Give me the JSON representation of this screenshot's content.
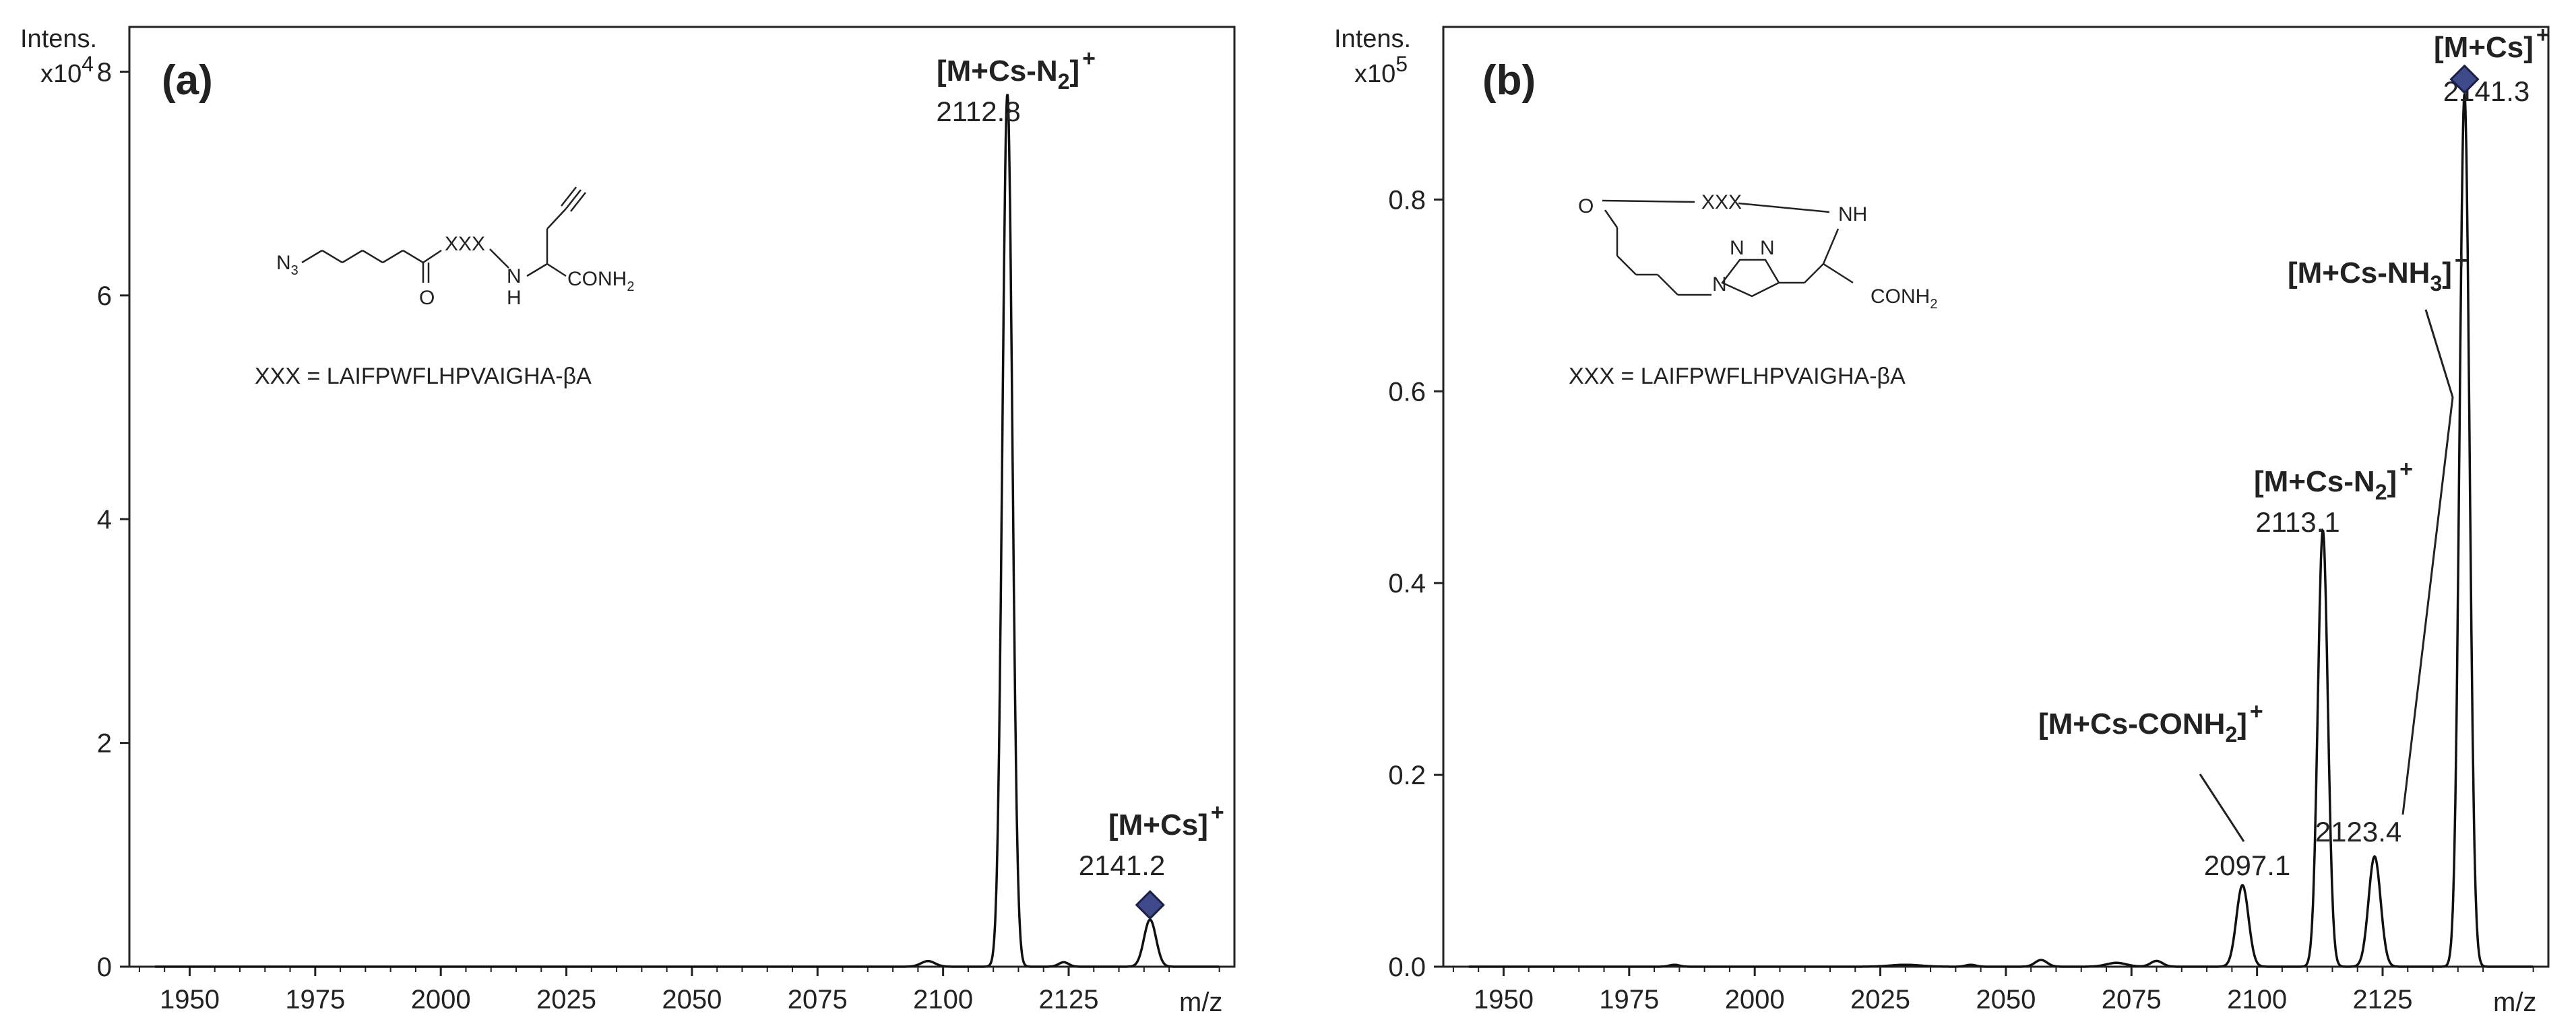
{
  "chart_data": [
    {
      "type": "line",
      "panel_label": "(a)",
      "ylabel": "Intens.",
      "y_multiplier": "x10",
      "y_multiplier_exp": "4",
      "xlabel": "m/z",
      "xlim": [
        1938,
        2158
      ],
      "ylim": [
        0,
        8.4
      ],
      "x_ticks": [
        "1950",
        "1975",
        "2000",
        "2025",
        "2050",
        "2075",
        "2100",
        "2125"
      ],
      "y_ticks": [
        "0",
        "2",
        "4",
        "6",
        "8"
      ],
      "grid": false,
      "peaks": [
        {
          "x": 2097.0,
          "y": 0.05,
          "width": 1.4
        },
        {
          "x": 2112.8,
          "y": 7.8,
          "width": 1.0
        },
        {
          "x": 2124.0,
          "y": 0.04,
          "width": 1.0
        },
        {
          "x": 2141.2,
          "y": 0.42,
          "width": 1.2
        }
      ],
      "annotations": [
        {
          "label": "[M+Cs-N",
          "sub": "2",
          "close": "]",
          "sup": "+",
          "value": "2112.8",
          "x": 2112.8,
          "y": 7.8
        },
        {
          "label": "[M+Cs]",
          "sub": "",
          "close": "",
          "sup": "+",
          "value": "2141.2",
          "x": 2141.2,
          "y": 0.42,
          "marker": "diamond"
        }
      ],
      "structure": {
        "n3": "N",
        "n3_sub": "3",
        "xxx": "XXX",
        "o": "O",
        "nh": "N",
        "h": "H",
        "conh2": "CONH",
        "conh2_sub": "2",
        "legend": "XXX  = LAIFPWFLHPVAIGHA-βA"
      }
    },
    {
      "type": "line",
      "panel_label": "(b)",
      "ylabel": "Intens.",
      "y_multiplier": "x10",
      "y_multiplier_exp": "5",
      "xlabel": "m/z",
      "xlim": [
        1938,
        2158
      ],
      "ylim": [
        0,
        0.98
      ],
      "x_ticks": [
        "1950",
        "1975",
        "2000",
        "2025",
        "2050",
        "2075",
        "2100",
        "2125"
      ],
      "y_ticks": [
        "0.0",
        "0.2",
        "0.4",
        "0.6",
        "0.8"
      ],
      "grid": false,
      "peaks": [
        {
          "x": 1984.0,
          "y": 0.002,
          "width": 1.0
        },
        {
          "x": 2030.0,
          "y": 0.002,
          "width": 3.0
        },
        {
          "x": 2043.0,
          "y": 0.002,
          "width": 1.0
        },
        {
          "x": 2057.0,
          "y": 0.007,
          "width": 1.2
        },
        {
          "x": 2072.0,
          "y": 0.004,
          "width": 2.0
        },
        {
          "x": 2080.0,
          "y": 0.006,
          "width": 1.2
        },
        {
          "x": 2097.1,
          "y": 0.085,
          "width": 1.2
        },
        {
          "x": 2113.1,
          "y": 0.455,
          "width": 1.0
        },
        {
          "x": 2123.4,
          "y": 0.115,
          "width": 1.2
        },
        {
          "x": 2141.3,
          "y": 0.91,
          "width": 1.0
        }
      ],
      "annotations": [
        {
          "label": "[M+Cs-CONH",
          "sub": "2",
          "close": "]",
          "sup": "+",
          "value": "2097.1",
          "x": 2097.1,
          "y": 0.085
        },
        {
          "label": "[M+Cs-N",
          "sub": "2",
          "close": "]",
          "sup": "+",
          "value": "2113.1",
          "x": 2113.1,
          "y": 0.455
        },
        {
          "label": "[M+Cs-NH",
          "sub": "3",
          "close": "]",
          "sup": "+",
          "value": "2123.4",
          "x": 2123.4,
          "y": 0.115
        },
        {
          "label": "[M+Cs]",
          "sub": "",
          "close": "",
          "sup": "+",
          "value": "2141.3",
          "x": 2141.3,
          "y": 0.91,
          "marker": "diamond"
        }
      ],
      "structure": {
        "o": "O",
        "xxx": "XXX",
        "nh": "NH",
        "n": "N",
        "conh2": "CONH",
        "conh2_sub": "2",
        "legend": "XXX  = LAIFPWFLHPVAIGHA-βA"
      }
    }
  ],
  "colors": {
    "trace": "#111111",
    "axis": "#222222",
    "marker_fill": "#3f4a8a",
    "marker_stroke": "#1a1f45"
  }
}
